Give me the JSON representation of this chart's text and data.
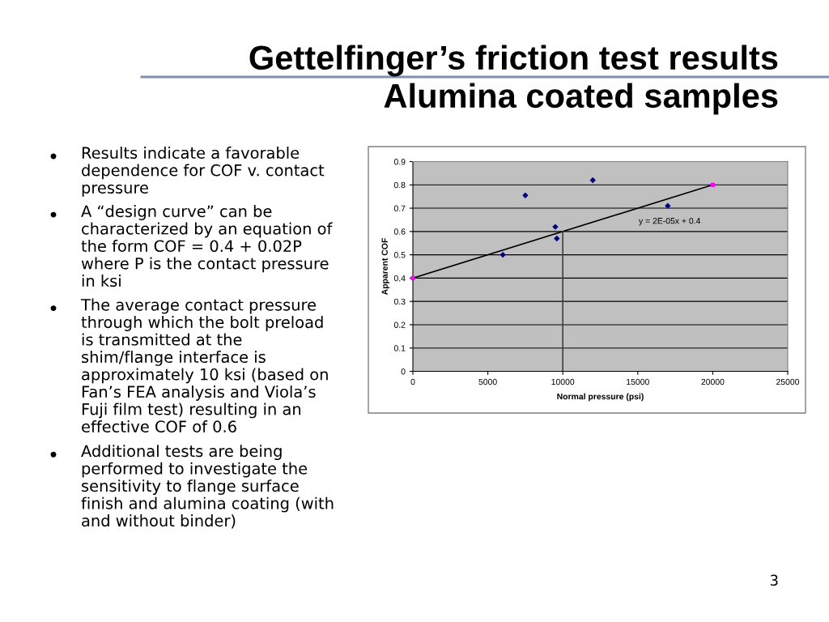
{
  "chart_data": {
    "type": "scatter",
    "title": "Gettelfinger’s friction test results",
    "subtitle": "Alumina coated samples",
    "xlabel": "Normal pressure (psi)",
    "ylabel": "Apparent COF",
    "series": [
      {
        "marker": "diamond",
        "color": "#000080",
        "x": [
          6000,
          7500,
          9500,
          9600,
          12000,
          17000
        ],
        "values": [
          0.5,
          0.755,
          0.62,
          0.57,
          0.82,
          0.71
        ]
      },
      {
        "marker": "square",
        "color": "#ff00ff",
        "x": [
          0,
          20000
        ],
        "values": [
          0.4,
          0.8
        ]
      },
      {
        "type": "line",
        "marker": "none",
        "line_style": "solid",
        "color": "#000000",
        "x": [
          0,
          20000
        ],
        "values": [
          0.4,
          0.8
        ]
      },
      {
        "type": "line",
        "marker": "none",
        "line_style": "solid",
        "color": "#404040",
        "x": [
          10000,
          10000
        ],
        "values": [
          0,
          0.6
        ]
      }
    ],
    "xlim": [
      0,
      25000
    ],
    "xticks": [
      0,
      5000,
      10000,
      15000,
      20000,
      25000
    ],
    "ylim": [
      0,
      0.9
    ],
    "yticks": [
      0,
      0.1,
      0.2,
      0.3,
      0.4,
      0.5,
      0.6,
      0.7,
      0.8,
      0.9
    ],
    "grid": "y",
    "annotations": [
      "y = 2E-05x + 0.4",
      "Results indicate a favorable\ndependence for COF v. contact\npressure",
      "A “design curve” can be\ncharacterized by an equation of\nthe form COF = 0.4 + 0.02P\nwhere P is the contact pressure\nin ksi",
      "The average contact pressure\nthrough which the bolt preload\nis transmitted at the\nshim/flange interface is\napproximately 10 ksi (based on\nFan’s FEA analysis and Viola’s\nFuji film test) resulting in an\neffective COF of 0.6",
      "Additional tests are being\nperformed to investigate the\nsensitivity to flange surface\nfinish and alumina coating (with\nand without binder)",
      "3"
    ]
  }
}
